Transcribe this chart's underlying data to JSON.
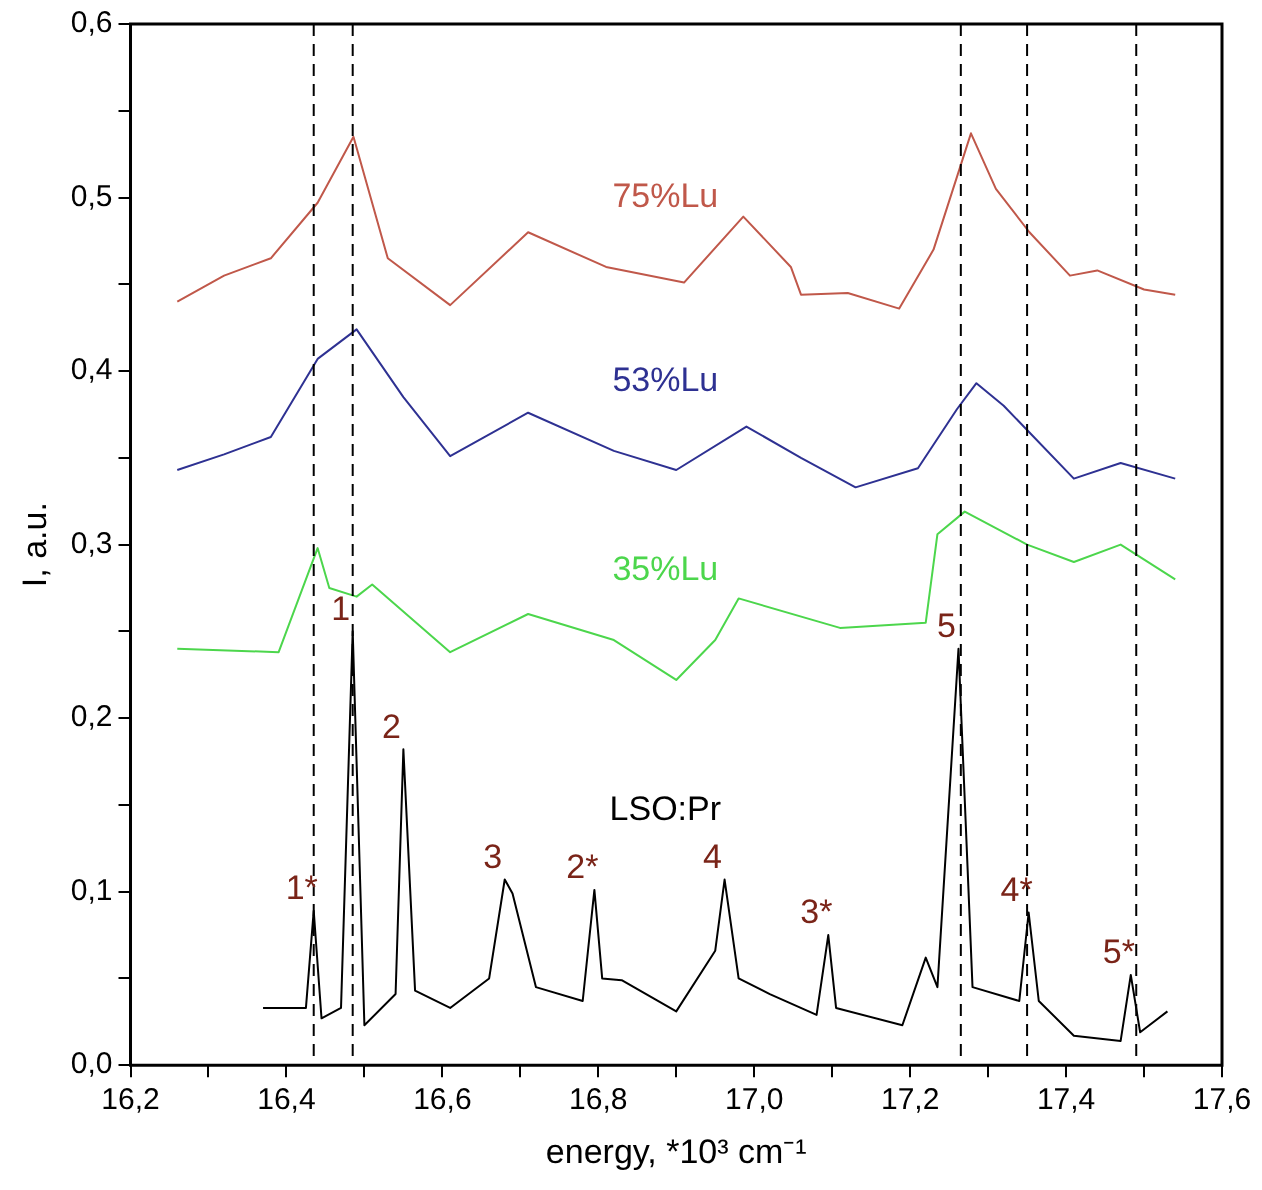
{
  "chart_data": {
    "type": "line",
    "xlabel": "energy, *10³ cm⁻¹",
    "ylabel": "I, a.u.",
    "xlim": [
      16.2,
      17.6
    ],
    "xticks": [
      {
        "value": 16.2,
        "label": "16,2"
      },
      {
        "value": 16.3,
        "label": null
      },
      {
        "value": 16.4,
        "label": "16,4"
      },
      {
        "value": 16.5,
        "label": null
      },
      {
        "value": 16.6,
        "label": "16,6"
      },
      {
        "value": 16.7,
        "label": null
      },
      {
        "value": 16.8,
        "label": "16,8"
      },
      {
        "value": 16.9,
        "label": null
      },
      {
        "value": 17.0,
        "label": "17,0"
      },
      {
        "value": 17.1,
        "label": null
      },
      {
        "value": 17.2,
        "label": "17,2"
      },
      {
        "value": 17.3,
        "label": null
      },
      {
        "value": 17.4,
        "label": "17,4"
      },
      {
        "value": 17.5,
        "label": null
      },
      {
        "value": 17.6,
        "label": "17,6"
      }
    ],
    "ylim": [
      0,
      0.6
    ],
    "yticks": [
      {
        "value": 0,
        "label": "0,0"
      },
      {
        "value": 0.05,
        "label": null
      },
      {
        "value": 0.1,
        "label": "0,1"
      },
      {
        "value": 0.15,
        "label": null
      },
      {
        "value": 0.2,
        "label": "0,2"
      },
      {
        "value": 0.25,
        "label": null
      },
      {
        "value": 0.3,
        "label": "0,3"
      },
      {
        "value": 0.35,
        "label": null
      },
      {
        "value": 0.4,
        "label": "0,4"
      },
      {
        "value": 0.45,
        "label": null
      },
      {
        "value": 0.5,
        "label": "0,5"
      },
      {
        "value": 0.55,
        "label": null
      },
      {
        "value": 0.6,
        "label": "0,6"
      }
    ],
    "grid": false,
    "legend": false,
    "marker": "none",
    "line_style": "solid",
    "series": [
      {
        "name": "75%Lu",
        "color": "#c0584a",
        "x": [
          16.26,
          16.32,
          16.38,
          16.44,
          16.486,
          16.53,
          16.61,
          16.71,
          16.81,
          16.91,
          16.986,
          17.047,
          17.06,
          17.12,
          17.186,
          17.23,
          17.278,
          17.31,
          17.353,
          17.405,
          17.44,
          17.5,
          17.54
        ],
        "values": [
          0.44,
          0.455,
          0.465,
          0.497,
          0.535,
          0.465,
          0.438,
          0.48,
          0.46,
          0.451,
          0.489,
          0.46,
          0.444,
          0.445,
          0.436,
          0.47,
          0.537,
          0.505,
          0.48,
          0.455,
          0.458,
          0.447,
          0.444
        ]
      },
      {
        "name": "53%Lu",
        "color": "#2e3192",
        "x": [
          16.26,
          16.32,
          16.38,
          16.44,
          16.49,
          16.55,
          16.61,
          16.71,
          16.82,
          16.9,
          16.99,
          17.06,
          17.13,
          17.21,
          17.26,
          17.285,
          17.32,
          17.35,
          17.41,
          17.47,
          17.54
        ],
        "values": [
          0.343,
          0.352,
          0.362,
          0.407,
          0.424,
          0.385,
          0.351,
          0.376,
          0.354,
          0.343,
          0.368,
          0.35,
          0.333,
          0.344,
          0.378,
          0.393,
          0.38,
          0.366,
          0.338,
          0.347,
          0.338
        ]
      },
      {
        "name": "35%Lu",
        "color": "#4cd64c",
        "x": [
          16.26,
          16.39,
          16.44,
          16.455,
          16.49,
          16.51,
          16.61,
          16.71,
          16.82,
          16.9,
          16.95,
          16.98,
          17.11,
          17.22,
          17.235,
          17.27,
          17.35,
          17.41,
          17.47,
          17.54
        ],
        "values": [
          0.24,
          0.238,
          0.298,
          0.275,
          0.27,
          0.277,
          0.238,
          0.26,
          0.245,
          0.222,
          0.245,
          0.269,
          0.252,
          0.255,
          0.306,
          0.319,
          0.3,
          0.29,
          0.3,
          0.28
        ]
      },
      {
        "name": "LSO:Pr",
        "color": "#000000",
        "x": [
          16.37,
          16.425,
          16.435,
          16.445,
          16.47,
          16.485,
          16.5,
          16.54,
          16.55,
          16.565,
          16.61,
          16.66,
          16.68,
          16.69,
          16.72,
          16.78,
          16.795,
          16.805,
          16.83,
          16.9,
          16.95,
          16.962,
          16.98,
          17.02,
          17.08,
          17.095,
          17.105,
          17.19,
          17.22,
          17.235,
          17.262,
          17.28,
          17.34,
          17.352,
          17.365,
          17.41,
          17.47,
          17.483,
          17.495,
          17.53
        ],
        "values": [
          0.033,
          0.033,
          0.089,
          0.027,
          0.033,
          0.25,
          0.023,
          0.041,
          0.182,
          0.043,
          0.033,
          0.05,
          0.107,
          0.099,
          0.045,
          0.037,
          0.101,
          0.05,
          0.049,
          0.031,
          0.066,
          0.107,
          0.05,
          0.041,
          0.029,
          0.075,
          0.033,
          0.023,
          0.062,
          0.045,
          0.24,
          0.045,
          0.037,
          0.088,
          0.037,
          0.017,
          0.014,
          0.052,
          0.019,
          0.031
        ]
      }
    ],
    "ref_lines": [
      {
        "axis": "x",
        "value": 16.435,
        "color": "#000000",
        "line_style": "dashed"
      },
      {
        "axis": "x",
        "value": 16.485,
        "color": "#000000",
        "line_style": "dashed"
      },
      {
        "axis": "x",
        "value": 17.265,
        "color": "#000000",
        "line_style": "dashed"
      },
      {
        "axis": "x",
        "value": 17.35,
        "color": "#000000",
        "line_style": "dashed"
      },
      {
        "axis": "x",
        "value": 17.49,
        "color": "#000000",
        "line_style": "dashed"
      }
    ],
    "annotations": [
      {
        "text": "1*",
        "x": 16.435,
        "y": 0.089
      },
      {
        "text": "1",
        "x": 16.485,
        "y": 0.25
      },
      {
        "text": "2",
        "x": 16.55,
        "y": 0.182
      },
      {
        "text": "3",
        "x": 16.68,
        "y": 0.107
      },
      {
        "text": "2*",
        "x": 16.795,
        "y": 0.101
      },
      {
        "text": "4",
        "x": 16.962,
        "y": 0.107
      },
      {
        "text": "3*",
        "x": 17.095,
        "y": 0.075
      },
      {
        "text": "5",
        "x": 17.262,
        "y": 0.24
      },
      {
        "text": "4*",
        "x": 17.352,
        "y": 0.088
      },
      {
        "text": "5*",
        "x": 17.483,
        "y": 0.052
      }
    ]
  }
}
